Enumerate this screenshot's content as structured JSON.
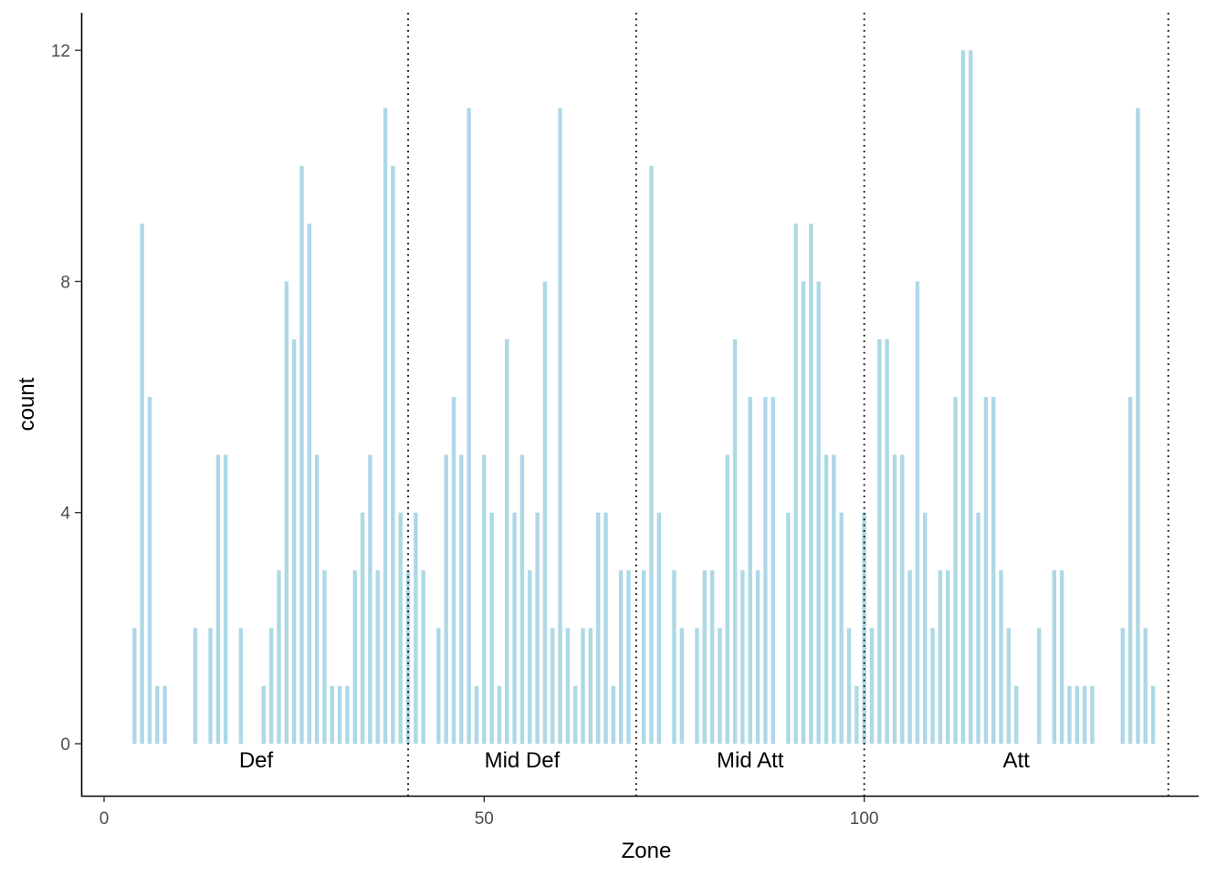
{
  "chart_data": {
    "type": "bar",
    "xlabel": "Zone",
    "ylabel": "count",
    "xlim": [
      -3,
      144
    ],
    "ylim": [
      -0.9,
      12.65
    ],
    "x_ticks": [
      0,
      50,
      100
    ],
    "y_ticks": [
      0,
      4,
      8,
      12
    ],
    "bar_color": "#add8e6",
    "grid": false,
    "zone_boundaries": [
      40,
      70,
      100,
      140
    ],
    "zone_labels": [
      {
        "label": "Def",
        "x": 20
      },
      {
        "label": "Mid Def",
        "x": 55
      },
      {
        "label": "Mid Att",
        "x": 85
      },
      {
        "label": "Att",
        "x": 120
      }
    ],
    "bars": [
      {
        "x": 4,
        "count": 2
      },
      {
        "x": 5,
        "count": 9
      },
      {
        "x": 6,
        "count": 6
      },
      {
        "x": 7,
        "count": 1
      },
      {
        "x": 8,
        "count": 1
      },
      {
        "x": 12,
        "count": 2
      },
      {
        "x": 14,
        "count": 2
      },
      {
        "x": 15,
        "count": 5
      },
      {
        "x": 16,
        "count": 5
      },
      {
        "x": 18,
        "count": 2
      },
      {
        "x": 21,
        "count": 1
      },
      {
        "x": 22,
        "count": 2
      },
      {
        "x": 23,
        "count": 3
      },
      {
        "x": 24,
        "count": 8
      },
      {
        "x": 25,
        "count": 7
      },
      {
        "x": 26,
        "count": 10
      },
      {
        "x": 27,
        "count": 9
      },
      {
        "x": 28,
        "count": 5
      },
      {
        "x": 29,
        "count": 3
      },
      {
        "x": 30,
        "count": 1
      },
      {
        "x": 31,
        "count": 1
      },
      {
        "x": 32,
        "count": 1
      },
      {
        "x": 33,
        "count": 3
      },
      {
        "x": 34,
        "count": 4
      },
      {
        "x": 35,
        "count": 5
      },
      {
        "x": 36,
        "count": 3
      },
      {
        "x": 37,
        "count": 11
      },
      {
        "x": 38,
        "count": 10
      },
      {
        "x": 39,
        "count": 4
      },
      {
        "x": 40,
        "count": 3
      },
      {
        "x": 41,
        "count": 4
      },
      {
        "x": 42,
        "count": 3
      },
      {
        "x": 44,
        "count": 2
      },
      {
        "x": 45,
        "count": 5
      },
      {
        "x": 46,
        "count": 6
      },
      {
        "x": 47,
        "count": 5
      },
      {
        "x": 48,
        "count": 11
      },
      {
        "x": 49,
        "count": 1
      },
      {
        "x": 50,
        "count": 5
      },
      {
        "x": 51,
        "count": 4
      },
      {
        "x": 52,
        "count": 1
      },
      {
        "x": 53,
        "count": 7
      },
      {
        "x": 54,
        "count": 4
      },
      {
        "x": 55,
        "count": 5
      },
      {
        "x": 56,
        "count": 3
      },
      {
        "x": 57,
        "count": 4
      },
      {
        "x": 58,
        "count": 8
      },
      {
        "x": 59,
        "count": 2
      },
      {
        "x": 60,
        "count": 11
      },
      {
        "x": 61,
        "count": 2
      },
      {
        "x": 62,
        "count": 1
      },
      {
        "x": 63,
        "count": 2
      },
      {
        "x": 64,
        "count": 2
      },
      {
        "x": 65,
        "count": 4
      },
      {
        "x": 66,
        "count": 4
      },
      {
        "x": 67,
        "count": 1
      },
      {
        "x": 68,
        "count": 3
      },
      {
        "x": 69,
        "count": 3
      },
      {
        "x": 71,
        "count": 3
      },
      {
        "x": 72,
        "count": 10
      },
      {
        "x": 73,
        "count": 4
      },
      {
        "x": 75,
        "count": 3
      },
      {
        "x": 76,
        "count": 2
      },
      {
        "x": 78,
        "count": 2
      },
      {
        "x": 79,
        "count": 3
      },
      {
        "x": 80,
        "count": 3
      },
      {
        "x": 81,
        "count": 2
      },
      {
        "x": 82,
        "count": 5
      },
      {
        "x": 83,
        "count": 7
      },
      {
        "x": 84,
        "count": 3
      },
      {
        "x": 85,
        "count": 6
      },
      {
        "x": 86,
        "count": 3
      },
      {
        "x": 87,
        "count": 6
      },
      {
        "x": 88,
        "count": 6
      },
      {
        "x": 90,
        "count": 4
      },
      {
        "x": 91,
        "count": 9
      },
      {
        "x": 92,
        "count": 8
      },
      {
        "x": 93,
        "count": 9
      },
      {
        "x": 94,
        "count": 8
      },
      {
        "x": 95,
        "count": 5
      },
      {
        "x": 96,
        "count": 5
      },
      {
        "x": 97,
        "count": 4
      },
      {
        "x": 98,
        "count": 2
      },
      {
        "x": 99,
        "count": 1
      },
      {
        "x": 100,
        "count": 4
      },
      {
        "x": 101,
        "count": 2
      },
      {
        "x": 102,
        "count": 7
      },
      {
        "x": 103,
        "count": 7
      },
      {
        "x": 104,
        "count": 5
      },
      {
        "x": 105,
        "count": 5
      },
      {
        "x": 106,
        "count": 3
      },
      {
        "x": 107,
        "count": 8
      },
      {
        "x": 108,
        "count": 4
      },
      {
        "x": 109,
        "count": 2
      },
      {
        "x": 110,
        "count": 3
      },
      {
        "x": 111,
        "count": 3
      },
      {
        "x": 112,
        "count": 6
      },
      {
        "x": 113,
        "count": 12
      },
      {
        "x": 114,
        "count": 12
      },
      {
        "x": 115,
        "count": 4
      },
      {
        "x": 116,
        "count": 6
      },
      {
        "x": 117,
        "count": 6
      },
      {
        "x": 118,
        "count": 3
      },
      {
        "x": 119,
        "count": 2
      },
      {
        "x": 120,
        "count": 1
      },
      {
        "x": 123,
        "count": 2
      },
      {
        "x": 125,
        "count": 3
      },
      {
        "x": 126,
        "count": 3
      },
      {
        "x": 127,
        "count": 1
      },
      {
        "x": 128,
        "count": 1
      },
      {
        "x": 129,
        "count": 1
      },
      {
        "x": 130,
        "count": 1
      },
      {
        "x": 134,
        "count": 2
      },
      {
        "x": 135,
        "count": 6
      },
      {
        "x": 136,
        "count": 11
      },
      {
        "x": 137,
        "count": 2
      },
      {
        "x": 138,
        "count": 1
      }
    ]
  }
}
